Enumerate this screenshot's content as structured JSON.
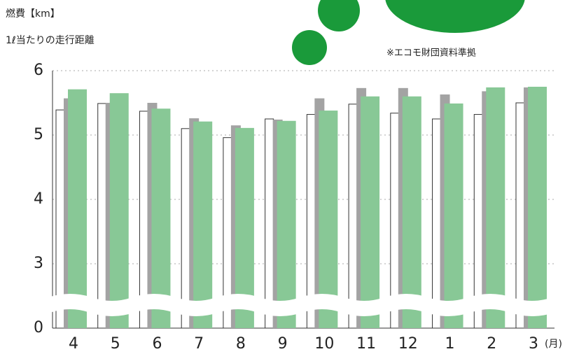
{
  "chart_data": {
    "type": "bar",
    "title": "燃費【km】",
    "subtitle": "1ℓ当たりの走行距離",
    "annotation": "※エコモ財団資料準拠",
    "x_label": "(月)",
    "categories": [
      "4",
      "5",
      "6",
      "7",
      "8",
      "9",
      "10",
      "11",
      "12",
      "1",
      "2",
      "3"
    ],
    "series": [
      {
        "color": "#ffffff",
        "values": [
          5.39,
          5.49,
          5.37,
          5.1,
          4.96,
          5.25,
          5.32,
          5.48,
          5.34,
          5.25,
          5.32,
          5.5
        ]
      },
      {
        "color": "#a3a3a3",
        "values": [
          5.57,
          5.5,
          5.5,
          5.26,
          5.15,
          5.24,
          5.57,
          5.73,
          5.73,
          5.63,
          5.68,
          5.74
        ]
      },
      {
        "color": "#88c896",
        "values": [
          5.71,
          5.65,
          5.41,
          5.21,
          5.11,
          5.22,
          5.38,
          5.6,
          5.6,
          5.49,
          5.74,
          5.75
        ]
      }
    ],
    "ylim": [
      0,
      6
    ],
    "yticks": [
      0,
      3,
      4,
      5,
      6
    ],
    "grid": true,
    "axis_break": true
  }
}
